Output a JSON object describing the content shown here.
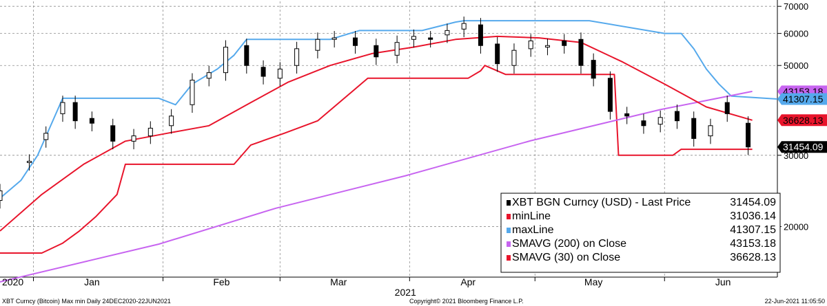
{
  "chart_data": {
    "type": "line",
    "title": "",
    "xlabel": "",
    "ylabel": "",
    "log_scale": true,
    "ylim": [
      15000,
      72000
    ],
    "y_ticks": [
      "70000",
      "60000",
      "50000",
      "30000",
      "20000"
    ],
    "y_tick_values": [
      70000,
      60000,
      50000,
      30000,
      20000
    ],
    "x_month_labels": [
      {
        "label": "2020",
        "date": "2020-12-24"
      },
      {
        "label": "Jan",
        "date": "2021-01-15"
      },
      {
        "label": "Feb",
        "date": "2021-02-15"
      },
      {
        "label": "Mar",
        "date": "2021-03-15"
      },
      {
        "label": "Apr",
        "date": "2021-04-15"
      },
      {
        "label": "May",
        "date": "2021-05-15"
      },
      {
        "label": "Jun",
        "date": "2021-06-15"
      }
    ],
    "x_year_label": {
      "label": "2021",
      "date": "2021-03-31"
    },
    "xlim": [
      "2020-12-24",
      "2021-06-28"
    ],
    "grid": "dashed gray",
    "legend_position": "bottom-right",
    "series": [
      {
        "name": "XBT BGN Curncy (USD) - Last Price",
        "kind": "candlestick",
        "color": "#000000",
        "last_value": "31454.09",
        "x": [
          "2020-12-24",
          "2020-12-31",
          "2021-01-04",
          "2021-01-08",
          "2021-01-11",
          "2021-01-15",
          "2021-01-20",
          "2021-01-25",
          "2021-01-29",
          "2021-02-03",
          "2021-02-08",
          "2021-02-12",
          "2021-02-16",
          "2021-02-21",
          "2021-02-25",
          "2021-03-01",
          "2021-03-05",
          "2021-03-10",
          "2021-03-14",
          "2021-03-19",
          "2021-03-24",
          "2021-03-29",
          "2021-04-02",
          "2021-04-06",
          "2021-04-10",
          "2021-04-14",
          "2021-04-18",
          "2021-04-22",
          "2021-04-26",
          "2021-04-30",
          "2021-05-04",
          "2021-05-08",
          "2021-05-12",
          "2021-05-15",
          "2021-05-19",
          "2021-05-23",
          "2021-05-27",
          "2021-05-31",
          "2021-06-04",
          "2021-06-08",
          "2021-06-12",
          "2021-06-16",
          "2021-06-21"
        ],
        "open": [
          23200,
          28800,
          32800,
          38000,
          40500,
          37000,
          35500,
          32500,
          33500,
          35500,
          40000,
          46500,
          48000,
          56000,
          49500,
          46500,
          50000,
          54500,
          58000,
          58500,
          56000,
          53000,
          58000,
          58500,
          59500,
          61500,
          63000,
          56500,
          50000,
          55000,
          55500,
          57500,
          58000,
          51500,
          46500,
          38000,
          36500,
          35800,
          38500,
          37000,
          33500,
          40500,
          36000
        ],
        "close": [
          24500,
          29000,
          34000,
          40500,
          36500,
          36000,
          32500,
          33500,
          35000,
          37500,
          46000,
          48000,
          55500,
          50000,
          47000,
          49000,
          55000,
          58000,
          58500,
          56000,
          52500,
          57000,
          59000,
          58000,
          61000,
          63500,
          56000,
          50500,
          54500,
          57500,
          56000,
          56000,
          50000,
          46500,
          38500,
          37500,
          35500,
          37200,
          36500,
          33000,
          35500,
          38000,
          31454
        ]
      },
      {
        "name": "minLine",
        "color": "#e8142b",
        "last_value": "31036.14",
        "x": [
          "2020-12-24",
          "2021-01-03",
          "2021-01-08",
          "2021-01-12",
          "2021-01-16",
          "2021-01-21",
          "2021-01-23",
          "2021-01-31",
          "2021-02-10",
          "2021-02-18",
          "2021-02-22",
          "2021-03-02",
          "2021-03-10",
          "2021-03-22",
          "2021-03-31",
          "2021-04-15",
          "2021-04-18",
          "2021-04-19",
          "2021-04-24",
          "2021-05-10",
          "2021-05-20",
          "2021-05-21",
          "2021-06-03",
          "2021-06-05",
          "2021-06-22"
        ],
        "y": [
          17200,
          17200,
          18200,
          19500,
          21200,
          24000,
          28500,
          28500,
          28500,
          28500,
          31800,
          34000,
          36500,
          46500,
          46500,
          46500,
          48500,
          50000,
          47500,
          47500,
          47500,
          30000,
          30000,
          31036,
          31036
        ]
      },
      {
        "name": "maxLine",
        "color": "#55a9ec",
        "last_value": "41307.15",
        "x": [
          "2020-12-24",
          "2020-12-29",
          "2021-01-02",
          "2021-01-08",
          "2021-01-31",
          "2021-02-04",
          "2021-02-08",
          "2021-02-14",
          "2021-02-18",
          "2021-02-21",
          "2021-03-13",
          "2021-03-20",
          "2021-04-04",
          "2021-04-12",
          "2021-04-14",
          "2021-05-14",
          "2021-06-01",
          "2021-06-05",
          "2021-06-08",
          "2021-06-11",
          "2021-06-14",
          "2021-06-17",
          "2021-06-28"
        ],
        "y": [
          23500,
          26000,
          30000,
          41500,
          41500,
          40000,
          45000,
          49000,
          53000,
          58000,
          58000,
          61000,
          61000,
          64000,
          64500,
          64500,
          60000,
          60000,
          55000,
          49000,
          45000,
          42000,
          41307
        ]
      },
      {
        "name": "SMAVG (200)  on Close",
        "color": "#c764f0",
        "last_value": "43153.18",
        "x": [
          "2020-12-24",
          "2021-01-31",
          "2021-02-28",
          "2021-03-31",
          "2021-04-30",
          "2021-05-31",
          "2021-06-22"
        ],
        "y": [
          14600,
          18100,
          22200,
          26700,
          32600,
          38900,
          43153
        ]
      },
      {
        "name": "SMAVG (30)  on Close",
        "color": "#e8142b",
        "last_value": "36628.13",
        "x": [
          "2020-12-24",
          "2021-01-03",
          "2021-01-13",
          "2021-01-23",
          "2021-02-02",
          "2021-02-12",
          "2021-02-22",
          "2021-03-03",
          "2021-03-13",
          "2021-03-23",
          "2021-04-02",
          "2021-04-12",
          "2021-04-22",
          "2021-05-02",
          "2021-05-12",
          "2021-05-22",
          "2021-06-01",
          "2021-06-11",
          "2021-06-22"
        ],
        "y": [
          19500,
          24000,
          28500,
          32500,
          34000,
          35500,
          40500,
          45500,
          50000,
          53500,
          55500,
          58000,
          59000,
          58500,
          57000,
          51000,
          45000,
          39500,
          36628
        ]
      }
    ],
    "right_tags": [
      {
        "value": "43153.18",
        "series": "SMAVG (200)  on Close"
      },
      {
        "value": "41307.15",
        "series": "maxLine"
      },
      {
        "value": "36628.13",
        "series": "SMAVG (30)  on Close"
      },
      {
        "value": "31454.09",
        "series": "XBT BGN Curncy (USD) - Last Price"
      }
    ],
    "footer": {
      "left": "XBT Curncy (Bitcoin) Max min  Daily 24DEC2020-22JUN2021",
      "center": "Copyright© 2021 Bloomberg Finance L.P.",
      "right": "22-Jun-2021 11:05:50"
    }
  }
}
